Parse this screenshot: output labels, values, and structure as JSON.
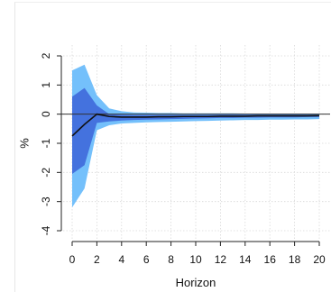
{
  "chart_data": {
    "type": "line",
    "title": "",
    "xlabel": "Horizon",
    "ylabel": "%",
    "xlim": [
      0,
      20
    ],
    "ylim": [
      -4,
      2
    ],
    "x_ticks": [
      0,
      2,
      4,
      6,
      8,
      10,
      12,
      14,
      16,
      18,
      20
    ],
    "y_ticks": [
      -4,
      -3,
      -2,
      -1,
      0,
      1,
      2
    ],
    "grid": true,
    "zero_line": true,
    "colors": {
      "outer_band": "#74c0fb",
      "inner_band": "#4472de",
      "median_line": "#111111",
      "zero_line": "#333333",
      "grid": "#d9d9d9"
    },
    "x": [
      0,
      1,
      2,
      3,
      4,
      5,
      6,
      7,
      8,
      9,
      10,
      11,
      12,
      13,
      14,
      15,
      16,
      17,
      18,
      19,
      20
    ],
    "median": [
      -0.75,
      -0.35,
      0.0,
      -0.08,
      -0.1,
      -0.1,
      -0.1,
      -0.09,
      -0.09,
      -0.08,
      -0.08,
      -0.08,
      -0.07,
      -0.07,
      -0.07,
      -0.06,
      -0.06,
      -0.06,
      -0.06,
      -0.06,
      -0.05
    ],
    "inner_band": {
      "upper": [
        0.6,
        0.9,
        0.3,
        0.0,
        -0.02,
        -0.03,
        -0.03,
        -0.03,
        -0.03,
        -0.03,
        -0.03,
        -0.03,
        -0.02,
        -0.02,
        -0.02,
        -0.02,
        -0.02,
        -0.02,
        -0.02,
        -0.02,
        -0.02
      ],
      "lower": [
        -2.05,
        -1.75,
        -0.3,
        -0.25,
        -0.22,
        -0.2,
        -0.19,
        -0.18,
        -0.17,
        -0.16,
        -0.15,
        -0.14,
        -0.13,
        -0.13,
        -0.12,
        -0.12,
        -0.11,
        -0.11,
        -0.11,
        -0.1,
        -0.1
      ]
    },
    "outer_band": {
      "upper": [
        1.5,
        1.7,
        0.65,
        0.2,
        0.1,
        0.06,
        0.05,
        0.04,
        0.04,
        0.03,
        0.03,
        0.03,
        0.03,
        0.03,
        0.02,
        0.02,
        0.02,
        0.02,
        0.02,
        0.02,
        0.02
      ],
      "lower": [
        -3.2,
        -2.55,
        -0.55,
        -0.38,
        -0.32,
        -0.3,
        -0.28,
        -0.27,
        -0.26,
        -0.25,
        -0.24,
        -0.23,
        -0.22,
        -0.21,
        -0.2,
        -0.2,
        -0.19,
        -0.19,
        -0.18,
        -0.18,
        -0.17
      ]
    }
  }
}
